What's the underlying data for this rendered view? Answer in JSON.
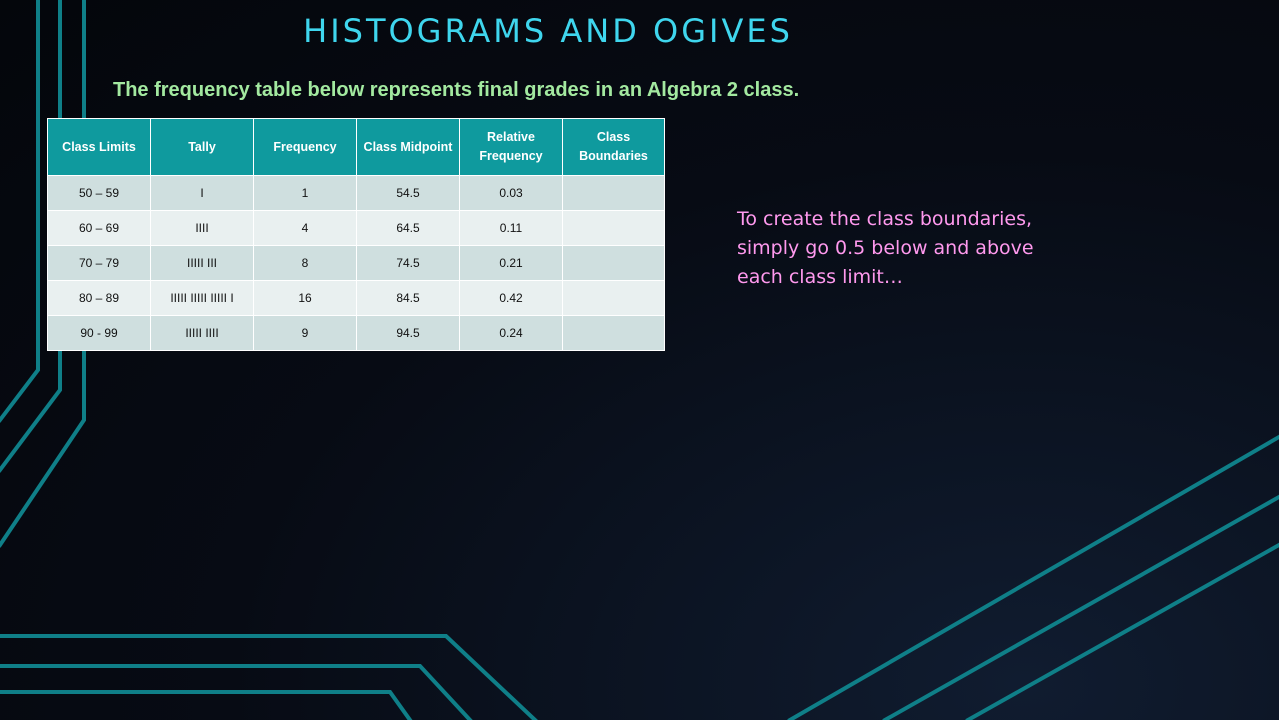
{
  "slide": {
    "title": "HISTOGRAMS AND OGIVES",
    "subtitle": "The frequency table below represents final grades in an Algebra 2 class.",
    "note": "To create the class boundaries, simply go 0.5 below and above each class limit…"
  },
  "table": {
    "headers": [
      "Class Limits",
      "Tally",
      "Frequency",
      "Class Midpoint",
      "Relative Frequency",
      "Class Boundaries"
    ],
    "rows": [
      [
        "50 – 59",
        "I",
        "1",
        "54.5",
        "0.03",
        ""
      ],
      [
        "60 – 69",
        "IIII",
        "4",
        "64.5",
        "0.11",
        ""
      ],
      [
        "70 – 79",
        "IIIII III",
        "8",
        "74.5",
        "0.21",
        ""
      ],
      [
        "80 – 89",
        "IIIII IIIII IIIII I",
        "16",
        "84.5",
        "0.42",
        ""
      ],
      [
        "90 - 99",
        "IIIII IIII",
        "9",
        "94.5",
        "0.24",
        ""
      ]
    ]
  },
  "theme": {
    "title_color": "#3fd6ee",
    "subtitle_color": "#a3e9a0",
    "note_color": "#ff99ee",
    "header_bg": "#0f9a9e",
    "accent_line": "#0e8a93"
  }
}
